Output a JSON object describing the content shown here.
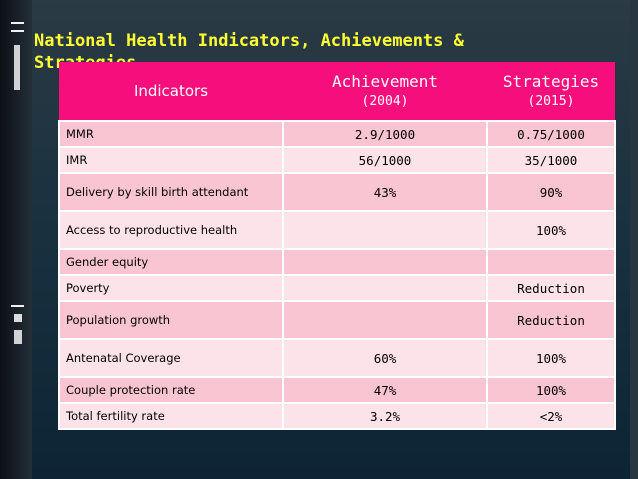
{
  "slide": {
    "title": "National Health Indicators, Achievements & Strategies"
  },
  "table": {
    "headers": [
      {
        "label": "Indicators",
        "sub": ""
      },
      {
        "label": "Achievement",
        "sub": "(2004)"
      },
      {
        "label": "Strategies",
        "sub": "(2015)"
      }
    ],
    "rows": [
      {
        "indicator": "MMR",
        "achievement": "2.9/1000",
        "strategy": "0.75/1000"
      },
      {
        "indicator": "IMR",
        "achievement": "56/1000",
        "strategy": "35/1000"
      },
      {
        "indicator": "Delivery by skill birth attendant",
        "achievement": "43%",
        "strategy": "90%"
      },
      {
        "indicator": "Access to reproductive health",
        "achievement": "",
        "strategy": "100%"
      },
      {
        "indicator": "Gender equity",
        "achievement": "",
        "strategy": ""
      },
      {
        "indicator": "Poverty",
        "achievement": "",
        "strategy": "Reduction"
      },
      {
        "indicator": "Population growth",
        "achievement": "",
        "strategy": "Reduction"
      },
      {
        "indicator": "Antenatal Coverage",
        "achievement": "60%",
        "strategy": "100%"
      },
      {
        "indicator": "Couple protection rate",
        "achievement": "47%",
        "strategy": "100%"
      },
      {
        "indicator": "Total fertility rate",
        "achievement": "3.2%",
        "strategy": "<2%"
      }
    ]
  },
  "colors": {
    "header_bg": "#f70e7d",
    "row_odd": "#f9c5d2",
    "row_even": "#fce3e9",
    "title": "#ffff33"
  }
}
